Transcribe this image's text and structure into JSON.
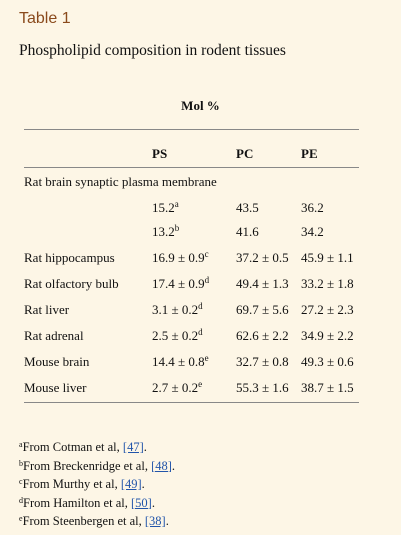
{
  "table_label": "Table 1",
  "caption": "Phospholipid composition in rodent tissues",
  "group_header": "Mol %",
  "columns": [
    "PS",
    "PC",
    "PE"
  ],
  "section_row": "Rat brain synaptic plasma membrane",
  "rows": [
    {
      "name": "",
      "ps": "15.2",
      "ps_sup": "a",
      "pc": "43.5",
      "pe": "36.2"
    },
    {
      "name": "",
      "ps": "13.2",
      "ps_sup": "b",
      "pc": "41.6",
      "pe": "34.2"
    },
    {
      "name": "Rat hippocampus",
      "ps": "16.9 ± 0.9",
      "ps_sup": "c",
      "pc": "37.2 ± 0.5",
      "pe": "45.9 ± 1.1"
    },
    {
      "name": "Rat olfactory bulb",
      "ps": "17.4 ± 0.9",
      "ps_sup": "d",
      "pc": "49.4 ± 1.3",
      "pe": "33.2 ± 1.8"
    },
    {
      "name": "Rat liver",
      "ps": "3.1 ± 0.2",
      "ps_sup": "d",
      "pc": "69.7 ± 5.6",
      "pe": "27.2 ± 2.3"
    },
    {
      "name": "Rat adrenal",
      "ps": "2.5 ± 0.2",
      "ps_sup": "d",
      "pc": "62.6 ± 2.2",
      "pe": "34.9 ± 2.2"
    },
    {
      "name": "Mouse brain",
      "ps": "14.4 ± 0.8",
      "ps_sup": "e",
      "pc": "32.7 ± 0.8",
      "pe": "49.3 ± 0.6"
    },
    {
      "name": "Mouse liver",
      "ps": "2.7 ± 0.2",
      "ps_sup": "e",
      "pc": "55.3 ± 1.6",
      "pe": "38.7 ± 1.5"
    }
  ],
  "footnotes": [
    {
      "mark": "a",
      "text": "From Cotman et al, ",
      "ref": "[47]",
      "end": "."
    },
    {
      "mark": "b",
      "text": "From Breckenridge et al, ",
      "ref": "[48]",
      "end": "."
    },
    {
      "mark": "c",
      "text": "From Murthy et al, ",
      "ref": "[49]",
      "end": "."
    },
    {
      "mark": "d",
      "text": "From Hamilton et al, ",
      "ref": "[50]",
      "end": "."
    },
    {
      "mark": "e",
      "text": "From Steenbergen et al, ",
      "ref": "[38]",
      "end": "."
    }
  ]
}
